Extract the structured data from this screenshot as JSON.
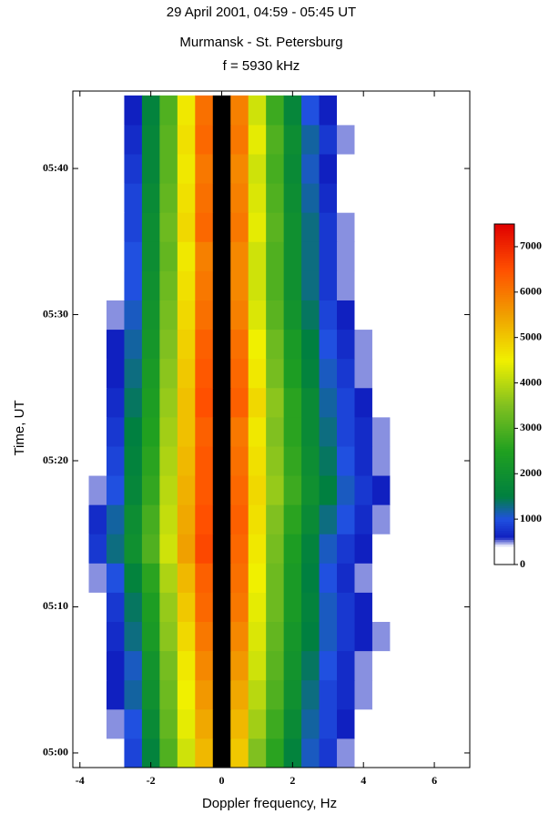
{
  "chart_data": {
    "type": "heatmap",
    "title": "29 April 2001, 04:59 - 05:45 UT",
    "subtitle": "Murmansk - St. Petersburg",
    "annotation": "f = 5930 kHz",
    "x_label": "Doppler frequency, Hz",
    "y_label": "Time, UT",
    "xlim": [
      -4.2,
      7
    ],
    "xticks": [
      -4,
      -2,
      0,
      2,
      4,
      6
    ],
    "ylim": [
      -1,
      45.3
    ],
    "yticks": [
      {
        "value": 0,
        "label": "05:00"
      },
      {
        "value": 10,
        "label": "05:10"
      },
      {
        "value": 20,
        "label": "05:20"
      },
      {
        "value": 30,
        "label": "05:30"
      },
      {
        "value": 40,
        "label": "05:40"
      }
    ],
    "x": [
      -4,
      -3.5,
      -3,
      -2.5,
      -2,
      -1.5,
      -1,
      -0.5,
      0,
      0.5,
      1,
      1.5,
      2,
      2.5,
      3,
      3.5,
      4,
      4.5,
      5,
      5.5,
      6,
      6.5,
      7
    ],
    "y": [
      0,
      2,
      4,
      6,
      8,
      10,
      12,
      14,
      16,
      18,
      20,
      22,
      24,
      26,
      28,
      30,
      32,
      34,
      36,
      38,
      40,
      42,
      44
    ],
    "z": [
      [
        0,
        100,
        400,
        900,
        1600,
        3000,
        4200,
        5200,
        9000,
        5000,
        3500,
        2600,
        1600,
        1100,
        800,
        500,
        400,
        200,
        100,
        0,
        0,
        0,
        0
      ],
      [
        0,
        200,
        500,
        1000,
        1800,
        3200,
        4400,
        5400,
        9000,
        5200,
        3800,
        2800,
        1800,
        1200,
        900,
        600,
        400,
        300,
        200,
        100,
        0,
        0,
        0
      ],
      [
        100,
        300,
        600,
        1200,
        2000,
        3300,
        4500,
        5600,
        9000,
        5400,
        4000,
        3000,
        2000,
        1300,
        900,
        700,
        500,
        300,
        200,
        100,
        100,
        0,
        0
      ],
      [
        0,
        200,
        600,
        1100,
        2100,
        3400,
        4600,
        5800,
        9000,
        5600,
        4200,
        3100,
        2100,
        1400,
        1000,
        700,
        500,
        400,
        200,
        100,
        0,
        0,
        0
      ],
      [
        100,
        300,
        700,
        1300,
        2300,
        3600,
        4800,
        6000,
        9000,
        5800,
        4300,
        3200,
        2200,
        1500,
        1100,
        800,
        600,
        500,
        300,
        200,
        100,
        0,
        0
      ],
      [
        100,
        400,
        800,
        1400,
        2400,
        3700,
        5000,
        6200,
        9000,
        6000,
        4400,
        3300,
        2300,
        1600,
        1100,
        800,
        600,
        400,
        300,
        200,
        100,
        0,
        0
      ],
      [
        200,
        500,
        1000,
        1600,
        2600,
        3900,
        5200,
        6300,
        9000,
        6100,
        4500,
        3300,
        2300,
        1500,
        1000,
        700,
        500,
        300,
        200,
        100,
        0,
        0,
        0
      ],
      [
        400,
        800,
        1300,
        2000,
        3000,
        4200,
        5500,
        6600,
        9000,
        6200,
        4600,
        3400,
        2400,
        1600,
        1100,
        800,
        600,
        400,
        300,
        200,
        100,
        0,
        0
      ],
      [
        300,
        700,
        1200,
        1900,
        2900,
        4100,
        5400,
        6500,
        9000,
        6300,
        4700,
        3500,
        2600,
        1800,
        1300,
        1000,
        700,
        500,
        400,
        300,
        200,
        100,
        0
      ],
      [
        200,
        500,
        1000,
        1700,
        2700,
        4000,
        5300,
        6400,
        9000,
        6200,
        4800,
        3700,
        2800,
        2000,
        1500,
        1100,
        800,
        600,
        400,
        300,
        200,
        100,
        0
      ],
      [
        100,
        400,
        900,
        1600,
        2600,
        3900,
        5200,
        6400,
        9000,
        6100,
        4700,
        3600,
        2700,
        1900,
        1400,
        1000,
        700,
        500,
        300,
        200,
        100,
        100,
        0
      ],
      [
        100,
        300,
        800,
        1500,
        2500,
        3800,
        5100,
        6300,
        9000,
        6000,
        4600,
        3500,
        2600,
        1800,
        1300,
        900,
        700,
        500,
        300,
        200,
        100,
        0,
        0
      ],
      [
        0,
        300,
        700,
        1400,
        2400,
        3700,
        5100,
        6500,
        9000,
        6300,
        4800,
        3600,
        2600,
        1800,
        1200,
        900,
        600,
        400,
        200,
        100,
        0,
        0,
        0
      ],
      [
        0,
        200,
        600,
        1300,
        2300,
        3600,
        5000,
        6400,
        9000,
        6200,
        4600,
        3400,
        2400,
        1600,
        1100,
        800,
        500,
        300,
        200,
        100,
        0,
        0,
        0
      ],
      [
        0,
        200,
        600,
        1200,
        2200,
        3500,
        4900,
        6300,
        9000,
        6100,
        4500,
        3300,
        2300,
        1500,
        1000,
        700,
        500,
        300,
        200,
        100,
        0,
        0,
        0
      ],
      [
        0,
        100,
        500,
        1100,
        2100,
        3400,
        4800,
        6100,
        9000,
        5900,
        4300,
        3100,
        2100,
        1400,
        900,
        600,
        400,
        200,
        100,
        0,
        0,
        0,
        0
      ],
      [
        0,
        100,
        400,
        1000,
        2000,
        3300,
        4700,
        6000,
        9000,
        5800,
        4200,
        3000,
        2000,
        1300,
        800,
        500,
        300,
        200,
        100,
        0,
        0,
        0,
        0
      ],
      [
        0,
        100,
        400,
        1000,
        1900,
        3200,
        4600,
        5900,
        9000,
        5800,
        4200,
        3000,
        2000,
        1300,
        800,
        500,
        300,
        200,
        100,
        0,
        0,
        0,
        0
      ],
      [
        0,
        100,
        300,
        900,
        1900,
        3300,
        4800,
        6200,
        9000,
        6000,
        4400,
        3100,
        2000,
        1300,
        800,
        500,
        300,
        200,
        100,
        0,
        0,
        0,
        0
      ],
      [
        0,
        100,
        300,
        900,
        1800,
        3200,
        4700,
        6100,
        9000,
        5900,
        4300,
        3000,
        1900,
        1200,
        700,
        400,
        300,
        100,
        0,
        0,
        0,
        0,
        0
      ],
      [
        0,
        0,
        200,
        800,
        1700,
        3100,
        4600,
        6000,
        9000,
        5800,
        4200,
        2900,
        1800,
        1100,
        600,
        400,
        200,
        100,
        0,
        0,
        0,
        0,
        0
      ],
      [
        0,
        0,
        200,
        700,
        1700,
        3100,
        4700,
        6200,
        9000,
        6000,
        4400,
        3000,
        1900,
        1200,
        800,
        500,
        300,
        200,
        100,
        0,
        0,
        0,
        0
      ],
      [
        0,
        0,
        100,
        600,
        1600,
        3000,
        4600,
        6100,
        9000,
        5900,
        4200,
        2800,
        1700,
        1000,
        600,
        300,
        200,
        100,
        0,
        0,
        0,
        0,
        0
      ]
    ],
    "colorbar_lim": [
      0,
      7500
    ],
    "colorbar_ticks": [
      0,
      1000,
      2000,
      3000,
      4000,
      5000,
      6000,
      7000
    ],
    "colorscale": [
      [
        0,
        "#ffffff"
      ],
      [
        400,
        "#ffffff"
      ],
      [
        600,
        "#1020c0"
      ],
      [
        1000,
        "#2050e0"
      ],
      [
        1500,
        "#008040"
      ],
      [
        2500,
        "#20a020"
      ],
      [
        3500,
        "#80c020"
      ],
      [
        4500,
        "#f0f000"
      ],
      [
        5500,
        "#f0a000"
      ],
      [
        6500,
        "#ff5000"
      ],
      [
        7500,
        "#e00000"
      ]
    ],
    "above_color": "#000000"
  }
}
